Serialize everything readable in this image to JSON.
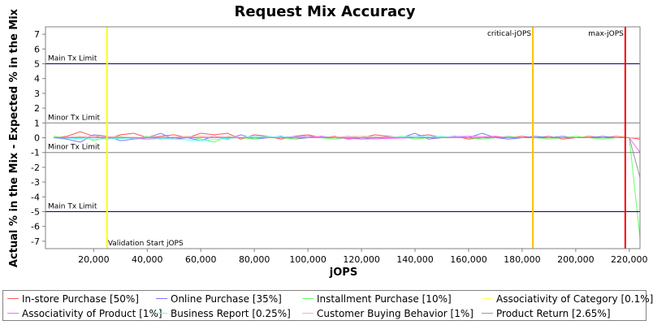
{
  "chart_data": {
    "type": "line",
    "title": "Request Mix Accuracy",
    "xlabel": "jOPS",
    "ylabel": "Actual % in the Mix - Expected % in the Mix",
    "xlim": [
      2000,
      224000
    ],
    "ylim": [
      -7.5,
      7.5
    ],
    "x_ticks": [
      20000,
      40000,
      60000,
      80000,
      100000,
      120000,
      140000,
      160000,
      180000,
      200000,
      220000
    ],
    "x_tick_labels": [
      "20,000",
      "40,000",
      "60,000",
      "80,000",
      "100,000",
      "120,000",
      "140,000",
      "160,000",
      "180,000",
      "200,000",
      "220,000"
    ],
    "y_ticks": [
      -7,
      -6,
      -5,
      -4,
      -3,
      -2,
      -1,
      0,
      1,
      2,
      3,
      4,
      5,
      6,
      7
    ],
    "y_tick_labels": [
      "-7",
      "-6",
      "-5",
      "-4",
      "-3",
      "-2",
      "-1",
      "0",
      "1",
      "2",
      "3",
      "4",
      "5",
      "6",
      "7"
    ],
    "grid": false,
    "legend_position": "bottom",
    "limit_lines": [
      {
        "label": "Main Tx Limit",
        "y": 5,
        "color": "#000080"
      },
      {
        "label": "Minor Tx Limit",
        "y": 1,
        "color": "#808080"
      },
      {
        "label": "Minor Tx Limit",
        "y": -1,
        "color": "#808080"
      },
      {
        "label": "Main Tx Limit",
        "y": -5,
        "color": "#000080"
      }
    ],
    "markers": [
      {
        "label": "Validation Start jOPS",
        "x": 25000,
        "color": "#ffff00"
      },
      {
        "label": "critical-jOPS",
        "x": 184000,
        "color": "#ffc000"
      },
      {
        "label": "max-jOPS",
        "x": 218500,
        "color": "#ff0000"
      }
    ],
    "series": [
      {
        "name": "In-store Purchase [50%]",
        "color": "#ff5555",
        "x": [
          5000,
          10000,
          15000,
          20000,
          25000,
          30000,
          35000,
          40000,
          45000,
          50000,
          55000,
          60000,
          65000,
          70000,
          75000,
          80000,
          85000,
          90000,
          95000,
          100000,
          105000,
          110000,
          115000,
          120000,
          125000,
          130000,
          135000,
          140000,
          145000,
          150000,
          155000,
          160000,
          165000,
          170000,
          175000,
          180000,
          185000,
          190000,
          195000,
          200000,
          205000,
          210000,
          215000,
          220000,
          224000
        ],
        "values": [
          0.0,
          0.1,
          0.4,
          0.1,
          -0.1,
          0.2,
          0.3,
          0.0,
          0.1,
          0.2,
          0.0,
          0.3,
          0.2,
          0.3,
          -0.1,
          0.2,
          0.1,
          -0.1,
          0.1,
          0.2,
          0.0,
          0.1,
          -0.1,
          0.0,
          0.2,
          0.1,
          0.0,
          0.1,
          0.2,
          0.0,
          0.1,
          -0.1,
          0.0,
          0.1,
          0.0,
          0.1,
          0.0,
          0.1,
          -0.1,
          0.0,
          0.1,
          0.0,
          0.1,
          0.0,
          -0.1
        ]
      },
      {
        "name": "Online Purchase [35%]",
        "color": "#7777ff",
        "x": [
          5000,
          10000,
          15000,
          20000,
          25000,
          30000,
          35000,
          40000,
          45000,
          50000,
          55000,
          60000,
          65000,
          70000,
          75000,
          80000,
          85000,
          90000,
          95000,
          100000,
          105000,
          110000,
          115000,
          120000,
          125000,
          130000,
          135000,
          140000,
          145000,
          150000,
          155000,
          160000,
          165000,
          170000,
          175000,
          180000,
          185000,
          190000,
          195000,
          200000,
          205000,
          210000,
          215000,
          220000,
          224000
        ],
        "values": [
          0.0,
          -0.1,
          -0.3,
          0.2,
          0.1,
          -0.2,
          -0.1,
          0.0,
          0.3,
          -0.1,
          0.0,
          -0.2,
          0.1,
          -0.1,
          0.2,
          -0.1,
          0.0,
          0.1,
          -0.1,
          0.0,
          0.1,
          0.0,
          0.1,
          -0.1,
          0.0,
          0.1,
          0.0,
          0.3,
          -0.1,
          0.0,
          0.1,
          0.0,
          0.3,
          0.0,
          -0.1,
          0.0,
          0.1,
          0.0,
          0.1,
          0.0,
          0.0,
          0.1,
          0.0,
          0.0,
          0.0
        ]
      },
      {
        "name": "Installment Purchase [10%]",
        "color": "#66ff66",
        "x": [
          5000,
          10000,
          15000,
          20000,
          25000,
          30000,
          35000,
          40000,
          45000,
          50000,
          55000,
          60000,
          65000,
          70000,
          75000,
          80000,
          85000,
          90000,
          95000,
          100000,
          105000,
          110000,
          115000,
          120000,
          125000,
          130000,
          135000,
          140000,
          145000,
          150000,
          155000,
          160000,
          165000,
          170000,
          175000,
          180000,
          185000,
          190000,
          195000,
          200000,
          205000,
          210000,
          215000,
          220000,
          224000
        ],
        "values": [
          0.1,
          0.0,
          0.1,
          -0.2,
          0.0,
          0.1,
          -0.1,
          0.1,
          -0.1,
          0.0,
          0.1,
          -0.1,
          -0.3,
          0.1,
          0.0,
          -0.1,
          0.1,
          0.0,
          -0.1,
          0.1,
          0.0,
          -0.1,
          0.0,
          0.1,
          -0.1,
          0.0,
          0.1,
          -0.1,
          0.0,
          0.1,
          0.0,
          0.0,
          -0.1,
          0.0,
          0.1,
          0.0,
          0.0,
          -0.1,
          0.0,
          0.1,
          0.0,
          -0.1,
          0.0,
          0.0,
          -6.8
        ]
      },
      {
        "name": "Associativity of Category [0.1%]",
        "color": "#ffff66",
        "x": [
          5000,
          20000,
          40000,
          60000,
          80000,
          100000,
          120000,
          140000,
          160000,
          180000,
          200000,
          220000,
          224000
        ],
        "values": [
          0.0,
          0.0,
          0.0,
          0.0,
          0.0,
          0.0,
          0.0,
          0.0,
          0.0,
          0.0,
          0.0,
          0.0,
          0.0
        ]
      },
      {
        "name": "Associativity of Product [1%]",
        "color": "#ff66ff",
        "x": [
          5000,
          20000,
          40000,
          60000,
          80000,
          100000,
          120000,
          140000,
          160000,
          180000,
          200000,
          220000,
          224000
        ],
        "values": [
          0.0,
          0.1,
          -0.1,
          0.1,
          0.0,
          0.1,
          -0.1,
          0.0,
          0.1,
          0.0,
          0.0,
          0.0,
          -1.0
        ]
      },
      {
        "name": "Business Report [0.25%]",
        "color": "#66ffff",
        "x": [
          5000,
          20000,
          40000,
          60000,
          80000,
          100000,
          120000,
          140000,
          160000,
          180000,
          200000,
          220000,
          224000
        ],
        "values": [
          0.0,
          -0.1,
          0.0,
          -0.2,
          0.1,
          0.0,
          0.0,
          0.1,
          0.0,
          0.0,
          0.0,
          0.0,
          0.0
        ]
      },
      {
        "name": "Customer Buying Behavior [1%]",
        "color": "#ffb0b0",
        "x": [
          5000,
          20000,
          40000,
          60000,
          80000,
          100000,
          120000,
          140000,
          160000,
          180000,
          200000,
          220000,
          224000
        ],
        "values": [
          0.0,
          0.1,
          0.0,
          0.1,
          0.0,
          0.0,
          0.1,
          0.0,
          0.0,
          0.0,
          0.0,
          0.0,
          0.0
        ]
      },
      {
        "name": "Product Return [2.65%]",
        "color": "#999999",
        "x": [
          5000,
          20000,
          40000,
          60000,
          80000,
          100000,
          120000,
          140000,
          160000,
          180000,
          200000,
          220000,
          224000
        ],
        "values": [
          0.0,
          0.0,
          0.0,
          0.0,
          0.0,
          0.0,
          0.0,
          0.0,
          0.0,
          0.0,
          0.0,
          0.0,
          -2.7
        ]
      }
    ]
  }
}
